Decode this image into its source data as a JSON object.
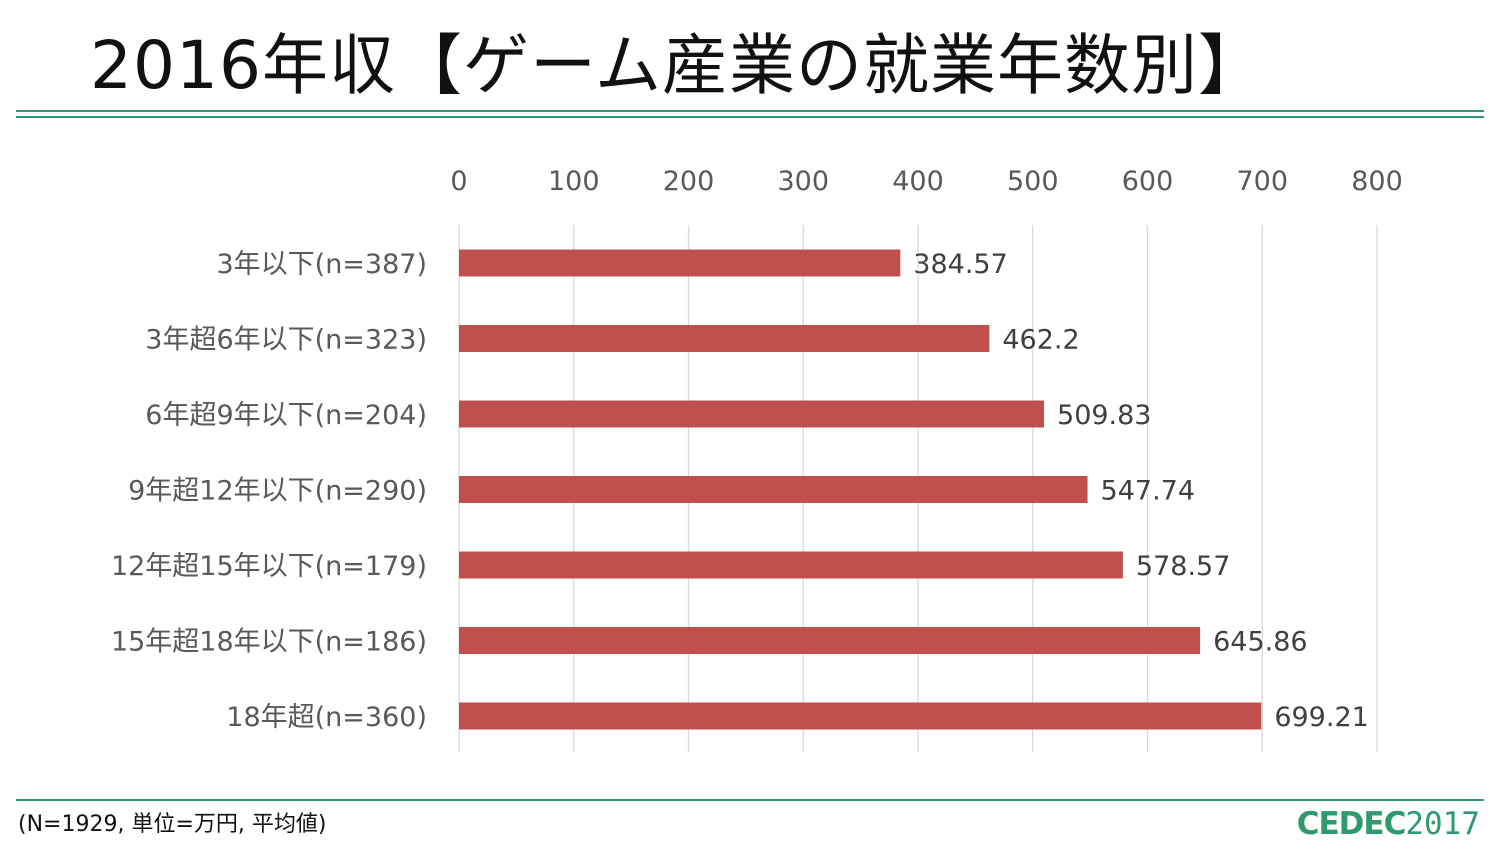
{
  "title": "2016年収【ゲーム産業の就業年数別】",
  "footnote": "(N=1929, 単位=万円, 平均値)",
  "logo": {
    "main": "CEDEC",
    "year": "2017"
  },
  "colors": {
    "bar": "#c0504d",
    "accent": "#2e9a6e",
    "grid": "#d9d9d9"
  },
  "chart_data": {
    "type": "bar",
    "orientation": "horizontal",
    "categories": [
      "3年以下(n=387)",
      "3年超6年以下(n=323)",
      "6年超9年以下(n=204)",
      "9年超12年以下(n=290)",
      "12年超15年以下(n=179)",
      "15年超18年以下(n=186)",
      "18年超(n=360)"
    ],
    "values": [
      384.57,
      462.2,
      509.83,
      547.74,
      578.57,
      645.86,
      699.21
    ],
    "value_labels": [
      "384.57",
      "462.2",
      "509.83",
      "547.74",
      "578.57",
      "645.86",
      "699.21"
    ],
    "xlim": [
      0,
      800
    ],
    "xticks": [
      0,
      100,
      200,
      300,
      400,
      500,
      600,
      700,
      800
    ],
    "x_axis_position": "top",
    "grid": true,
    "legend": false
  }
}
